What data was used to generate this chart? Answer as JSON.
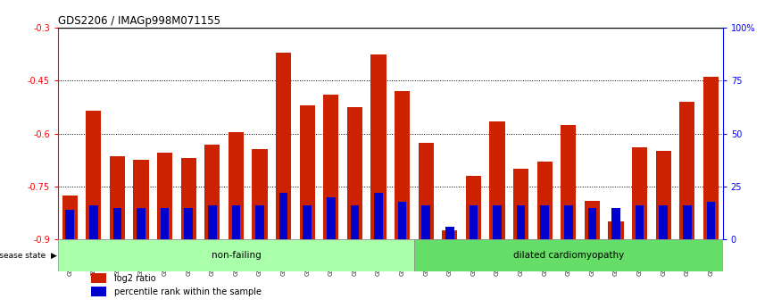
{
  "title": "GDS2206 / IMAGp998M071155",
  "samples": [
    "GSM82393",
    "GSM82394",
    "GSM82395",
    "GSM82396",
    "GSM82397",
    "GSM82398",
    "GSM82399",
    "GSM82400",
    "GSM82401",
    "GSM82402",
    "GSM82403",
    "GSM82404",
    "GSM82405",
    "GSM82406",
    "GSM82407",
    "GSM82408",
    "GSM82409",
    "GSM82410",
    "GSM82411",
    "GSM82412",
    "GSM82413",
    "GSM82414",
    "GSM82415",
    "GSM82416",
    "GSM82417",
    "GSM82418",
    "GSM82419",
    "GSM82420"
  ],
  "log2_ratio": [
    -0.775,
    -0.535,
    -0.665,
    -0.675,
    -0.655,
    -0.67,
    -0.63,
    -0.595,
    -0.645,
    -0.37,
    -0.52,
    -0.49,
    -0.525,
    -0.375,
    -0.48,
    -0.625,
    -0.875,
    -0.72,
    -0.565,
    -0.7,
    -0.68,
    -0.575,
    -0.79,
    -0.85,
    -0.64,
    -0.65,
    -0.51,
    -0.44
  ],
  "percentile": [
    14,
    16,
    15,
    15,
    15,
    15,
    16,
    16,
    16,
    22,
    16,
    20,
    16,
    22,
    18,
    16,
    6,
    16,
    16,
    16,
    16,
    16,
    15,
    15,
    16,
    16,
    16,
    18
  ],
  "non_failing_count": 15,
  "ylim_left": [
    -0.9,
    -0.3
  ],
  "yticks_left": [
    -0.9,
    -0.75,
    -0.6,
    -0.45,
    -0.3
  ],
  "yticks_right": [
    0,
    25,
    50,
    75,
    100
  ],
  "bar_color": "#cc2200",
  "percentile_color": "#0000cc",
  "nonfailing_color": "#aaffaa",
  "dilated_color": "#66dd66",
  "label_nonfailing": "non-failing",
  "label_dilated": "dilated cardiomyopathy",
  "legend_log2": "log2 ratio",
  "legend_pct": "percentile rank within the sample",
  "disease_state_label": "disease state"
}
